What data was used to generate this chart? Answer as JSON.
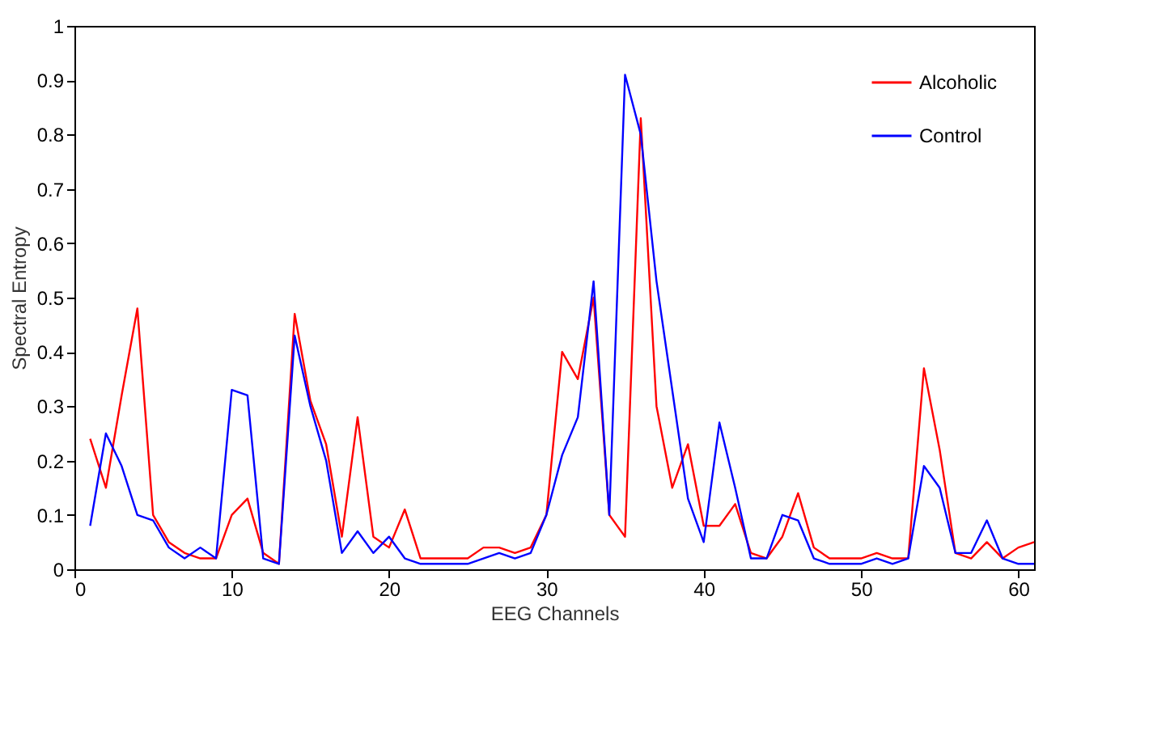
{
  "chart_data": {
    "type": "line",
    "xlabel": "EEG Channels",
    "ylabel": "Spectral Entropy",
    "x": [
      1,
      2,
      3,
      4,
      5,
      6,
      7,
      8,
      9,
      10,
      11,
      12,
      13,
      14,
      15,
      16,
      17,
      18,
      19,
      20,
      21,
      22,
      23,
      24,
      25,
      26,
      27,
      28,
      29,
      30,
      31,
      32,
      33,
      34,
      35,
      36,
      37,
      38,
      39,
      40,
      41,
      42,
      43,
      44,
      45,
      46,
      47,
      48,
      49,
      50,
      51,
      52,
      53,
      54,
      55,
      56,
      57,
      58,
      59,
      60,
      61
    ],
    "series": [
      {
        "name": "Alcoholic",
        "color": "#ff0000",
        "values": [
          0.24,
          0.15,
          0.32,
          0.48,
          0.1,
          0.05,
          0.03,
          0.02,
          0.02,
          0.1,
          0.13,
          0.03,
          0.01,
          0.47,
          0.31,
          0.23,
          0.06,
          0.28,
          0.06,
          0.04,
          0.11,
          0.02,
          0.02,
          0.02,
          0.02,
          0.04,
          0.04,
          0.03,
          0.04,
          0.1,
          0.4,
          0.35,
          0.5,
          0.1,
          0.06,
          0.83,
          0.3,
          0.15,
          0.23,
          0.08,
          0.08,
          0.12,
          0.03,
          0.02,
          0.06,
          0.14,
          0.04,
          0.02,
          0.02,
          0.02,
          0.03,
          0.02,
          0.02,
          0.37,
          0.22,
          0.03,
          0.02,
          0.05,
          0.02,
          0.04,
          0.05
        ]
      },
      {
        "name": "Control",
        "color": "#0000ff",
        "values": [
          0.08,
          0.25,
          0.19,
          0.1,
          0.09,
          0.04,
          0.02,
          0.04,
          0.02,
          0.33,
          0.32,
          0.02,
          0.01,
          0.43,
          0.3,
          0.2,
          0.03,
          0.07,
          0.03,
          0.06,
          0.02,
          0.01,
          0.01,
          0.01,
          0.01,
          0.02,
          0.03,
          0.02,
          0.03,
          0.1,
          0.21,
          0.28,
          0.53,
          0.1,
          0.91,
          0.8,
          0.53,
          0.33,
          0.13,
          0.05,
          0.27,
          0.15,
          0.02,
          0.02,
          0.1,
          0.09,
          0.02,
          0.01,
          0.01,
          0.01,
          0.02,
          0.01,
          0.02,
          0.19,
          0.15,
          0.03,
          0.03,
          0.09,
          0.02,
          0.01,
          0.01
        ]
      }
    ],
    "xlim": [
      0,
      61
    ],
    "xticks": [
      0,
      10,
      20,
      30,
      40,
      50,
      60
    ],
    "ylim": [
      0,
      1
    ],
    "yticks": [
      0,
      0.1,
      0.2,
      0.3,
      0.4,
      0.5,
      0.6,
      0.7,
      0.8,
      0.9,
      1
    ],
    "grid": false,
    "legend": "top right",
    "marker": "none",
    "line_style": "solid"
  }
}
